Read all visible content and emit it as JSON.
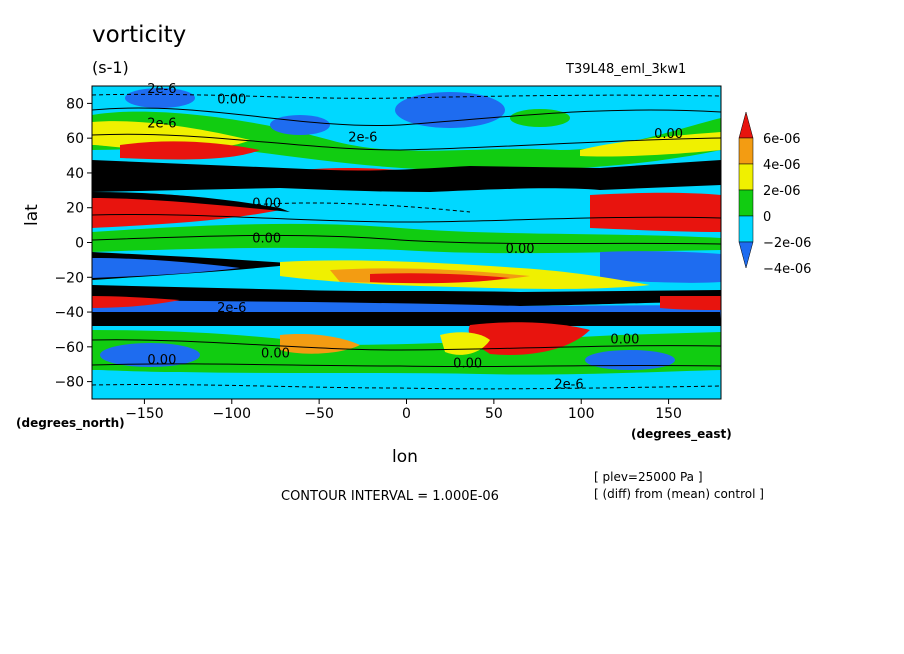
{
  "chart_data": {
    "type": "heatmap",
    "title": "vorticity",
    "units": "(s-1)",
    "run_name": "T39L48_eml_3kw1",
    "xlabel": "lon",
    "ylabel": "lat",
    "x_units": "(degrees_east)",
    "y_units": "(degrees_north)",
    "xlim": [
      -180,
      180
    ],
    "ylim": [
      -90,
      90
    ],
    "x_ticks": [
      -150,
      -100,
      -50,
      0,
      50,
      100,
      150
    ],
    "x_tick_labels": [
      "−150",
      "−100",
      "−50",
      "0",
      "50",
      "100",
      "150"
    ],
    "y_ticks": [
      80,
      60,
      40,
      20,
      0,
      -20,
      -40,
      -60,
      -80
    ],
    "y_tick_labels": [
      "80",
      "60",
      "40",
      "20",
      "0",
      "−20",
      "−40",
      "−60",
      "−80"
    ],
    "contour_interval": "CONTOUR INTERVAL = 1.000E-06",
    "notes": [
      "[ plev=25000 Pa ]",
      "[ (diff) from (mean) control ]"
    ],
    "contour_labels": [
      {
        "text": "0.00",
        "lon": -100,
        "lat": 80
      },
      {
        "text": "2e-6",
        "lon": -140,
        "lat": 86
      },
      {
        "text": "2e-6",
        "lon": -140,
        "lat": 66
      },
      {
        "text": "2e-6",
        "lon": -25,
        "lat": 58
      },
      {
        "text": "0.00",
        "lon": -80,
        "lat": 20
      },
      {
        "text": "0.00",
        "lon": -80,
        "lat": 0
      },
      {
        "text": "2e-6",
        "lon": -100,
        "lat": -40
      },
      {
        "text": "0.00",
        "lon": -75,
        "lat": -66
      },
      {
        "text": "0.00",
        "lon": -140,
        "lat": -70
      },
      {
        "text": "0.00",
        "lon": 35,
        "lat": -72
      },
      {
        "text": "0.00",
        "lon": 65,
        "lat": -6
      },
      {
        "text": "0.00",
        "lon": 125,
        "lat": -58
      },
      {
        "text": "0.00",
        "lon": 150,
        "lat": 60
      },
      {
        "text": "2e-6",
        "lon": 93,
        "lat": -84
      }
    ],
    "colorbar": {
      "colors": [
        "#1e6cf0",
        "#00d8ff",
        "#11cc11",
        "#f0f000",
        "#f39c12",
        "#e8140e"
      ],
      "labels": [
        "6e-06",
        "4e-06",
        "2e-06",
        "0",
        "−2e-06",
        "−4e-06"
      ],
      "boundaries": [
        -4e-06,
        -2e-06,
        0,
        2e-06,
        4e-06,
        6e-06
      ],
      "extend": "both"
    }
  }
}
